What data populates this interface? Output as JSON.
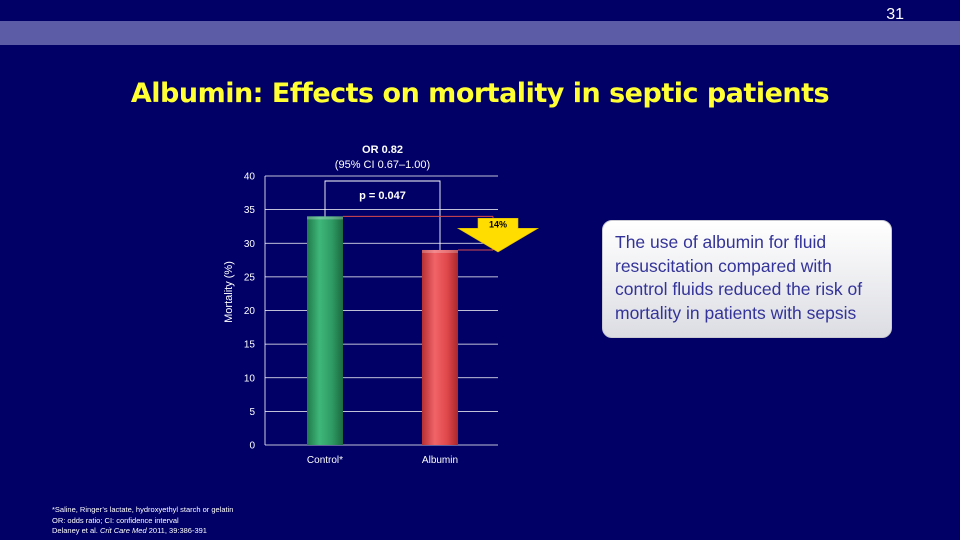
{
  "slide_number": "31",
  "title": "Albumin: Effects on mortality in septic patients",
  "colors": {
    "background": "#000066",
    "band": "#5b5ba6",
    "title": "#ffff33",
    "control_bar": "#2e9a63",
    "albumin_bar": "#e0484b",
    "arrow": "#ffdd00",
    "callout_text": "#333399"
  },
  "chart_data": {
    "type": "bar",
    "categories": [
      "Control*",
      "Albumin"
    ],
    "values": [
      34,
      29
    ],
    "ylabel": "Mortality (%)",
    "ylim": [
      0,
      40
    ],
    "yticks": [
      0,
      5,
      10,
      15,
      20,
      25,
      30,
      35,
      40
    ],
    "grid": true,
    "annotations": {
      "or_label": "OR 0.82",
      "ci_label": "(95% CI 0.67–1.00)",
      "p_value": "p = 0.047",
      "reduction": "14%"
    }
  },
  "callout": {
    "text": "The use of albumin for fluid resuscitation compared with control fluids reduced the risk of mortality in patients with sepsis"
  },
  "footnotes": {
    "line1": "*Saline, Ringer’s lactate, hydroxyethyl starch or gelatin",
    "line2": "OR: odds ratio; CI: confidence interval",
    "line3_prefix": "Delaney et al. ",
    "line3_journal": "Crit Care Med",
    "line3_suffix": " 2011, 39:386-391"
  }
}
